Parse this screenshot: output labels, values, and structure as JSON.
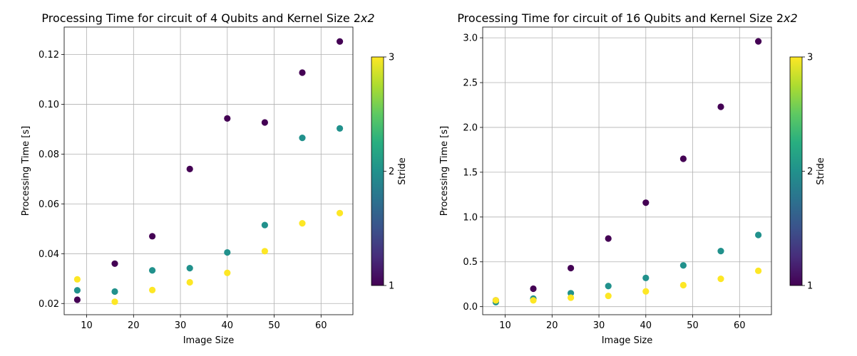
{
  "chart_data": [
    {
      "type": "scatter",
      "title": "Processing Time for circuit of 4 Qubits and Kernel Size 2",
      "title_math_suffix": "x2",
      "xlabel": "Image Size",
      "ylabel": "Processing Time [s]",
      "xlim": [
        5.2,
        66.8
      ],
      "ylim": [
        0.0155,
        0.131
      ],
      "xticks": [
        10,
        20,
        30,
        40,
        50,
        60
      ],
      "xtick_labels": [
        "10",
        "20",
        "30",
        "40",
        "50",
        "60"
      ],
      "yticks": [
        0.02,
        0.04,
        0.06,
        0.08,
        0.1,
        0.12
      ],
      "ytick_labels": [
        "0.02",
        "0.04",
        "0.06",
        "0.08",
        "0.10",
        "0.12"
      ],
      "grid": true,
      "colorbar": {
        "label": "Stride",
        "range": [
          1,
          3
        ],
        "ticks": [
          1,
          2,
          3
        ],
        "tick_labels": [
          "1",
          "2",
          "3"
        ],
        "colormap": "viridis"
      },
      "series": [
        {
          "name": "Stride 1",
          "stride": 1,
          "color": "#440154",
          "x": [
            8,
            16,
            24,
            32,
            40,
            48,
            56,
            64
          ],
          "y": [
            0.0215,
            0.036,
            0.047,
            0.074,
            0.0943,
            0.0927,
            0.1127,
            0.1252
          ]
        },
        {
          "name": "Stride 2",
          "stride": 2,
          "color": "#21918c",
          "x": [
            8,
            16,
            24,
            32,
            40,
            48,
            56,
            64
          ],
          "y": [
            0.0253,
            0.0248,
            0.0333,
            0.0342,
            0.0405,
            0.0515,
            0.0865,
            0.0903
          ]
        },
        {
          "name": "Stride 3",
          "stride": 3,
          "color": "#fde725",
          "x": [
            8,
            16,
            24,
            32,
            40,
            48,
            56,
            64
          ],
          "y": [
            0.0297,
            0.0207,
            0.0254,
            0.0285,
            0.0323,
            0.041,
            0.0522,
            0.0563
          ]
        }
      ]
    },
    {
      "type": "scatter",
      "title": "Processing Time for circuit of 16 Qubits and Kernel Size 2",
      "title_math_suffix": "x2",
      "xlabel": "Image Size",
      "ylabel": "Processing Time [s]",
      "xlim": [
        5.2,
        66.8
      ],
      "ylim": [
        -0.09,
        3.12
      ],
      "xticks": [
        10,
        20,
        30,
        40,
        50,
        60
      ],
      "xtick_labels": [
        "10",
        "20",
        "30",
        "40",
        "50",
        "60"
      ],
      "yticks": [
        0.0,
        0.5,
        1.0,
        1.5,
        2.0,
        2.5,
        3.0
      ],
      "ytick_labels": [
        "0.0",
        "0.5",
        "1.0",
        "1.5",
        "2.0",
        "2.5",
        "3.0"
      ],
      "grid": true,
      "colorbar": {
        "label": "Stride",
        "range": [
          1,
          3
        ],
        "ticks": [
          1,
          2,
          3
        ],
        "tick_labels": [
          "1",
          "2",
          "3"
        ],
        "colormap": "viridis"
      },
      "series": [
        {
          "name": "Stride 1",
          "stride": 1,
          "color": "#440154",
          "x": [
            8,
            16,
            24,
            32,
            40,
            48,
            56,
            64
          ],
          "y": [
            0.07,
            0.2,
            0.43,
            0.76,
            1.16,
            1.65,
            2.23,
            2.96
          ]
        },
        {
          "name": "Stride 2",
          "stride": 2,
          "color": "#21918c",
          "x": [
            8,
            16,
            24,
            32,
            40,
            48,
            56,
            64
          ],
          "y": [
            0.05,
            0.09,
            0.15,
            0.23,
            0.32,
            0.46,
            0.62,
            0.8
          ]
        },
        {
          "name": "Stride 3",
          "stride": 3,
          "color": "#fde725",
          "x": [
            8,
            16,
            24,
            32,
            40,
            48,
            56,
            64
          ],
          "y": [
            0.07,
            0.07,
            0.1,
            0.12,
            0.17,
            0.24,
            0.31,
            0.4
          ]
        }
      ]
    }
  ]
}
